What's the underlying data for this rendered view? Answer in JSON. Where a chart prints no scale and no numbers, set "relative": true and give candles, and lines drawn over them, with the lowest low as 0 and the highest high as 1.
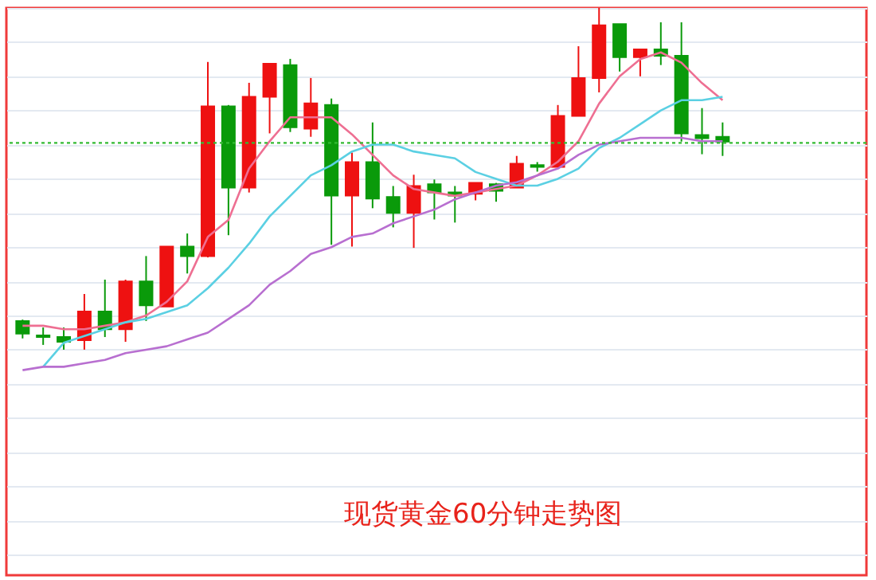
{
  "chart_data": {
    "type": "candlestick",
    "title": "现货黄金60分钟走势图",
    "relative": true,
    "grid": "y",
    "categories": [
      null,
      null,
      null,
      null,
      null,
      null,
      null,
      null,
      null,
      null,
      null,
      null,
      null,
      null,
      null,
      null,
      null,
      null,
      null,
      null,
      null,
      null,
      null,
      null,
      null,
      null,
      null,
      null,
      null,
      null,
      null,
      null,
      null,
      null,
      null
    ],
    "ohlc": [
      [
        0.084,
        0.088,
        0.033,
        0.047
      ],
      [
        0.042,
        0.065,
        0.014,
        0.037
      ],
      [
        0.037,
        0.065,
        0,
        0.023
      ],
      [
        0.028,
        0.163,
        0,
        0.112
      ],
      [
        0.112,
        0.205,
        0.037,
        0.06
      ],
      [
        0.06,
        0.205,
        0.023,
        0.2
      ],
      [
        0.2,
        0.274,
        0.084,
        0.13
      ],
      [
        0.126,
        0.302,
        0.126,
        0.302
      ],
      [
        0.302,
        0.34,
        0.223,
        0.274
      ],
      [
        0.274,
        0.842,
        0.27,
        0.712
      ],
      [
        0.712,
        0.716,
        0.335,
        0.474
      ],
      [
        0.474,
        0.781,
        0.46,
        0.74
      ],
      [
        0.74,
        0.837,
        0.633,
        0.837
      ],
      [
        0.833,
        0.851,
        0.637,
        0.651
      ],
      [
        0.647,
        0.795,
        0.623,
        0.721
      ],
      [
        0.716,
        0.735,
        0.307,
        0.451
      ],
      [
        0.451,
        0.577,
        0.302,
        0.549
      ],
      [
        0.549,
        0.665,
        0.414,
        0.442
      ],
      [
        0.447,
        0.479,
        0.358,
        0.4
      ],
      [
        0.4,
        0.512,
        0.298,
        0.479
      ],
      [
        0.484,
        0.498,
        0.381,
        0.46
      ],
      [
        0.46,
        0.479,
        0.372,
        0.451
      ],
      [
        0.456,
        0.488,
        0.437,
        0.488
      ],
      [
        0.484,
        0.488,
        0.433,
        0.465
      ],
      [
        0.474,
        0.567,
        0.474,
        0.544
      ],
      [
        0.54,
        0.549,
        0.521,
        0.535
      ],
      [
        0.535,
        0.716,
        0.535,
        0.684
      ],
      [
        0.684,
        0.888,
        0.684,
        0.795
      ],
      [
        0.795,
        1,
        0.753,
        0.949
      ],
      [
        0.953,
        0.953,
        0.814,
        0.856
      ],
      [
        0.856,
        0.879,
        0.8,
        0.879
      ],
      [
        0.879,
        0.958,
        0.833,
        0.86
      ],
      [
        0.86,
        0.958,
        0.609,
        0.633
      ],
      [
        0.628,
        0.707,
        0.572,
        0.619
      ],
      [
        0.623,
        0.665,
        0.567,
        0.609
      ]
    ],
    "colors": [
      "#0a9a0a",
      "#0a9a0a",
      "#0a9a0a",
      "#ee1111",
      "#0a9a0a",
      "#ee1111",
      "#0a9a0a",
      "#ee1111",
      "#0a9a0a",
      "#ee1111",
      "#0a9a0a",
      "#ee1111",
      "#ee1111",
      "#0a9a0a",
      "#ee1111",
      "#0a9a0a",
      "#ee1111",
      "#0a9a0a",
      "#0a9a0a",
      "#ee1111",
      "#0a9a0a",
      "#0a9a0a",
      "#ee1111",
      "#0a9a0a",
      "#ee1111",
      "#0a9a0a",
      "#ee1111",
      "#ee1111",
      "#ee1111",
      "#0a9a0a",
      "#ee1111",
      "#0a9a0a",
      "#0a9a0a",
      "#0a9a0a",
      "#0a9a0a"
    ],
    "series": [
      {
        "type": "line",
        "color": "#ee6f92",
        "values": [
          0.07,
          0.07,
          0.06,
          0.06,
          0.07,
          0.08,
          0.1,
          0.14,
          0.2,
          0.33,
          0.38,
          0.53,
          0.61,
          0.68,
          0.68,
          0.68,
          0.63,
          0.57,
          0.51,
          0.47,
          0.46,
          0.45,
          0.46,
          0.47,
          0.48,
          0.51,
          0.55,
          0.61,
          0.72,
          0.8,
          0.85,
          0.87,
          0.84,
          0.78,
          0.73
        ]
      },
      {
        "type": "line",
        "color": "#5bd0e3",
        "values": [
          null,
          -0.05,
          0.02,
          0.04,
          0.06,
          0.08,
          0.09,
          0.11,
          0.13,
          0.18,
          0.24,
          0.31,
          0.39,
          0.45,
          0.51,
          0.54,
          0.58,
          0.6,
          0.6,
          0.58,
          0.57,
          0.56,
          0.52,
          0.5,
          0.48,
          0.48,
          0.5,
          0.53,
          0.59,
          0.62,
          0.66,
          0.7,
          0.73,
          0.73,
          0.74
        ]
      },
      {
        "type": "line",
        "color": "#b86fd0",
        "values": [
          -0.06,
          -0.05,
          -0.05,
          -0.04,
          -0.03,
          -0.01,
          0.0,
          0.01,
          0.03,
          0.05,
          0.09,
          0.13,
          0.19,
          0.23,
          0.28,
          0.3,
          0.33,
          0.34,
          0.37,
          0.39,
          0.41,
          0.44,
          0.46,
          0.48,
          0.49,
          0.51,
          0.53,
          0.57,
          0.6,
          0.61,
          0.62,
          0.62,
          0.62,
          0.61,
          0.61
        ]
      }
    ],
    "ref_lines": [
      {
        "axis": "y",
        "value": 0.605,
        "color": "#33bb33",
        "line_style": "dotted"
      }
    ]
  }
}
